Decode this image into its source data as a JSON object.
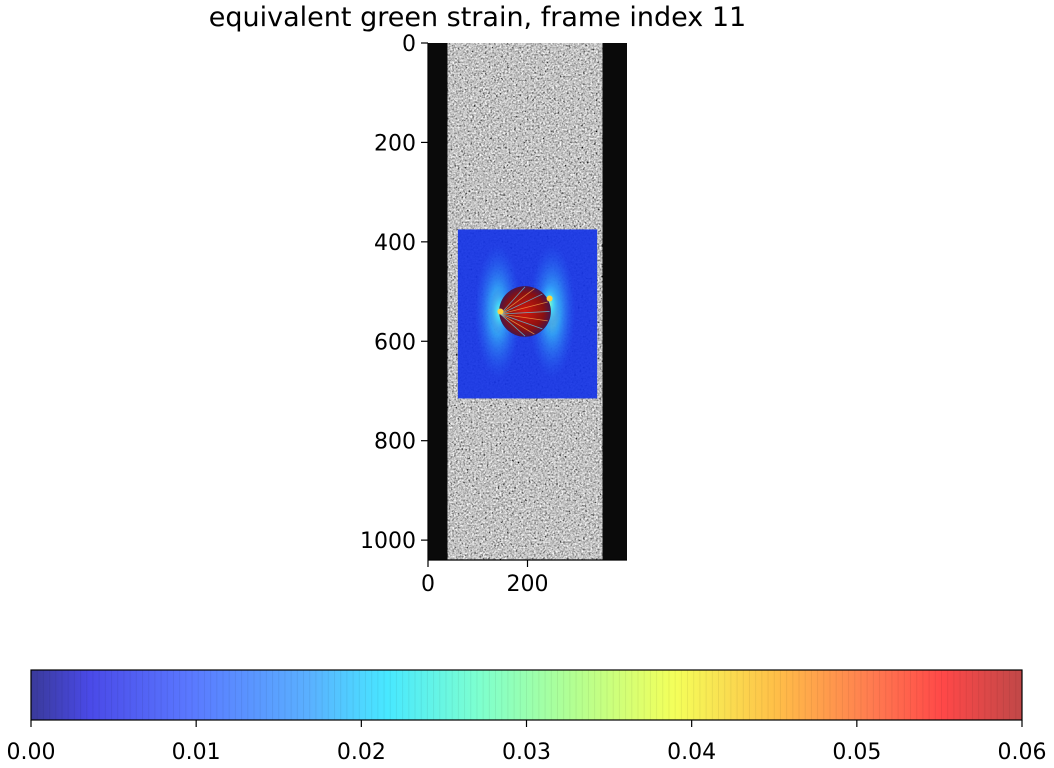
{
  "chart_data": {
    "type": "heatmap",
    "title": "equivalent green strain, frame index 11",
    "image": {
      "description_source": "speckle-pattern specimen image with strain overlay",
      "xlim": [
        0,
        400
      ],
      "ylim": [
        1040,
        0
      ],
      "x_ticks": [
        0,
        200
      ],
      "y_ticks": [
        0,
        200,
        400,
        600,
        800,
        1000
      ],
      "specimen_x_range": [
        40,
        350
      ],
      "strain_region": {
        "x": [
          60,
          340
        ],
        "y": [
          375,
          715
        ]
      },
      "hole": {
        "cx": 195,
        "cy": 540,
        "r": 52
      }
    },
    "colorbar": {
      "orientation": "horizontal",
      "colormap": "jet",
      "range": [
        0.0,
        0.06
      ],
      "ticks": [
        "0.00",
        "0.01",
        "0.02",
        "0.03",
        "0.04",
        "0.05",
        "0.06"
      ]
    },
    "colors": {
      "background": "#ffffff",
      "specimen_edge": "#0a0a0a",
      "low_strain": "#1433e6",
      "high_strain": "#c0100c"
    }
  }
}
